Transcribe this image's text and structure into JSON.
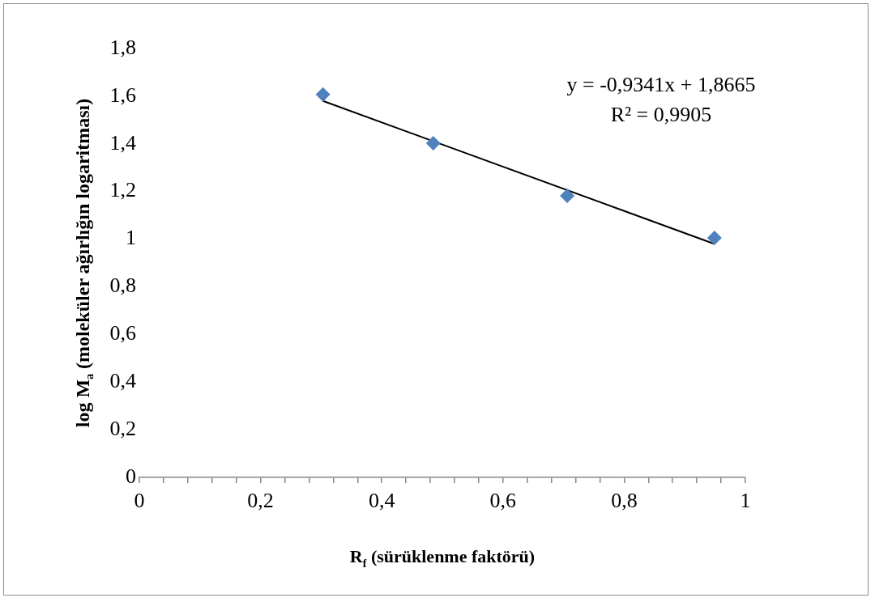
{
  "chart_data": {
    "type": "scatter",
    "xlabel": "R$_{f}$ (sürüklenme faktörü)",
    "ylabel": "log M$_{a}$ (moleküler ağırlığın logaritması)",
    "annotations": [
      "y = -0,9341x + 1,8665",
      "R² = 0,9905"
    ],
    "series": [
      {
        "color": "#4f81bd",
        "marker": "diamond",
        "x": [
          0.303,
          0.485,
          0.706,
          0.949
        ],
        "values": [
          1.607,
          1.403,
          1.182,
          1.005
        ]
      },
      {
        "type": "line",
        "color": "#000000",
        "marker": "none",
        "line_style": "solid",
        "x": [
          0.303,
          0.949
        ],
        "values": [
          1.58,
          0.98
        ]
      }
    ],
    "xlim": [
      0,
      1
    ],
    "xticks": [
      0,
      {
        "value": 0.04,
        "label": null
      },
      {
        "value": 0.08,
        "label": null
      },
      {
        "value": 0.12,
        "label": null
      },
      {
        "value": 0.16,
        "label": null
      },
      {
        "value": 0.2,
        "label": "0,2"
      },
      {
        "value": 0.24,
        "label": null
      },
      {
        "value": 0.28,
        "label": null
      },
      {
        "value": 0.32,
        "label": null
      },
      {
        "value": 0.36,
        "label": null
      },
      {
        "value": 0.4,
        "label": "0,4"
      },
      {
        "value": 0.44,
        "label": null
      },
      {
        "value": 0.48,
        "label": null
      },
      {
        "value": 0.52,
        "label": null
      },
      {
        "value": 0.56,
        "label": null
      },
      {
        "value": 0.6,
        "label": "0,6"
      },
      {
        "value": 0.64,
        "label": null
      },
      {
        "value": 0.68,
        "label": null
      },
      {
        "value": 0.72,
        "label": null
      },
      {
        "value": 0.76,
        "label": null
      },
      {
        "value": 0.8,
        "label": "0,8"
      },
      {
        "value": 0.84,
        "label": null
      },
      {
        "value": 0.88,
        "label": null
      },
      {
        "value": 0.92,
        "label": null
      },
      {
        "value": 0.96,
        "label": null
      },
      1
    ],
    "ylim": [
      0,
      1.8
    ],
    "yticks": [
      0,
      {
        "value": 0.2,
        "label": "0,2"
      },
      {
        "value": 0.4,
        "label": "0,4"
      },
      {
        "value": 0.6,
        "label": "0,6"
      },
      {
        "value": 0.8,
        "label": "0,8"
      },
      1,
      {
        "value": 1.2,
        "label": "1,2"
      },
      {
        "value": 1.4,
        "label": "1,4"
      },
      {
        "value": 1.6,
        "label": "1,6"
      },
      {
        "value": 1.8,
        "label": "1,8"
      }
    ],
    "grid": false,
    "legend": false
  }
}
